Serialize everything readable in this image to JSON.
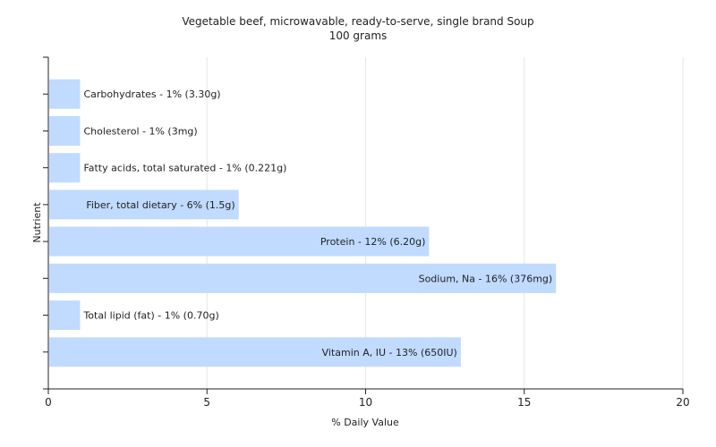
{
  "chart_data": {
    "type": "bar",
    "orientation": "horizontal",
    "title": "Vegetable beef, microwavable, ready-to-serve, single brand Soup",
    "subtitle": "100 grams",
    "xlabel": "% Daily Value",
    "ylabel": "Nutrient",
    "xlim": [
      0,
      20
    ],
    "xticks": [
      "0",
      "5",
      "10",
      "15",
      "20"
    ],
    "grid": true,
    "legend": "none",
    "bar_color": "#c0dbff",
    "categories": [
      "Carbohydrates",
      "Cholesterol",
      "Fatty acids, total saturated",
      "Fiber, total dietary",
      "Protein",
      "Sodium, Na",
      "Total lipid (fat)",
      "Vitamin A, IU"
    ],
    "values": [
      1,
      1,
      1,
      6,
      12,
      16,
      1,
      13
    ],
    "labels": [
      "Carbohydrates - 1% (3.30g)",
      "Cholesterol - 1% (3mg)",
      "Fatty acids, total saturated - 1% (0.221g)",
      "Fiber, total dietary - 6% (1.5g)",
      "Protein - 12% (6.20g)",
      "Sodium, Na - 16% (376mg)",
      "Total lipid (fat) - 1% (0.70g)",
      "Vitamin A, IU - 13% (650IU)"
    ]
  }
}
